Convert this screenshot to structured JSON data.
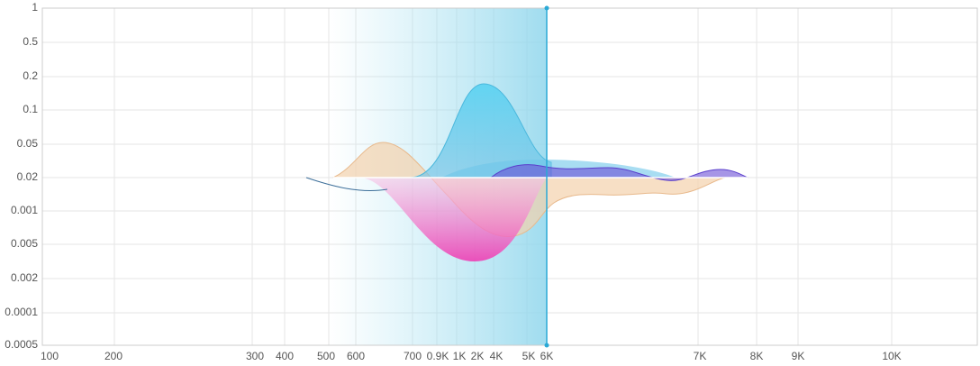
{
  "axis": {
    "y_labels": [
      "1",
      "0.5",
      "0.2",
      "0.1",
      "0.05",
      "0.02",
      "0.001",
      "0.005",
      "0.002",
      "0.0001",
      "0.0005"
    ],
    "x_labels": [
      "100",
      "200",
      "300",
      "400",
      "500",
      "600",
      "700",
      "0.9K",
      "1K",
      "2K",
      "4K",
      "5K",
      "6K",
      "7K",
      "8K",
      "9K",
      "10K"
    ]
  }
}
